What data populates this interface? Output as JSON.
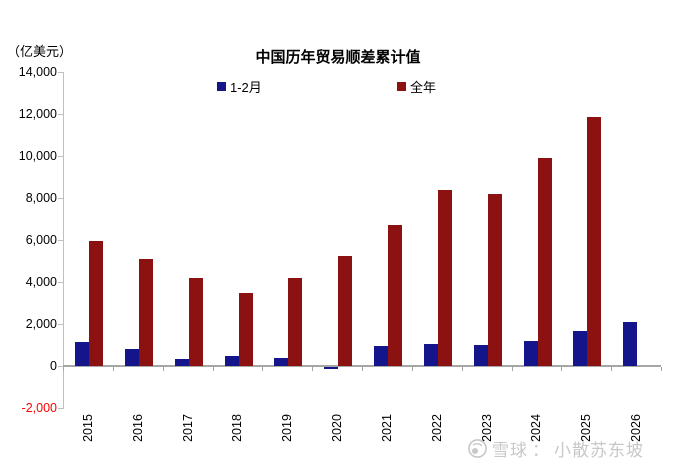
{
  "unit_label": "（亿美元）",
  "watermark": {
    "brand": "雪球",
    "separator": "：",
    "username": "小散苏东坡"
  },
  "colors": {
    "jan_feb_bar": "#14148B",
    "full_year_bar": "#8C1111",
    "axis": "#BFBFBF",
    "zero_line": "#A6A6A6",
    "negative_tick_label": "#FF0000",
    "watermark": "#C8C8C8"
  },
  "chart_data": {
    "type": "bar",
    "title": "中国历年贸易顺差累计值",
    "unit": "亿美元",
    "grid": false,
    "legend_position": "top",
    "ylim": [
      -2000,
      14000
    ],
    "ytick_step": 2000,
    "yticks": [
      {
        "value": 14000,
        "label": "14,000",
        "color": "#000000"
      },
      {
        "value": 12000,
        "label": "12,000",
        "color": "#000000"
      },
      {
        "value": 10000,
        "label": "10,000",
        "color": "#000000"
      },
      {
        "value": 8000,
        "label": "8,000",
        "color": "#000000"
      },
      {
        "value": 6000,
        "label": "6,000",
        "color": "#000000"
      },
      {
        "value": 4000,
        "label": "4,000",
        "color": "#000000"
      },
      {
        "value": 2000,
        "label": "2,000",
        "color": "#000000"
      },
      {
        "value": 0,
        "label": "0",
        "color": "#000000"
      },
      {
        "value": -2000,
        "label": "-2,000",
        "color": "#FF0000"
      }
    ],
    "categories": [
      "2015",
      "2016",
      "2017",
      "2018",
      "2019",
      "2020",
      "2021",
      "2022",
      "2023",
      "2024",
      "2025",
      "2026"
    ],
    "series": [
      {
        "key": "jan-feb",
        "name": "1-2月",
        "color": "#14148B",
        "values": [
          1150,
          800,
          350,
          460,
          400,
          -80,
          950,
          1050,
          1020,
          1200,
          1650,
          2100
        ]
      },
      {
        "key": "full-year",
        "name": "全年",
        "color": "#8C1111",
        "values": [
          5940,
          5100,
          4190,
          3500,
          4210,
          5240,
          6700,
          8380,
          8200,
          9900,
          11850,
          null
        ]
      }
    ]
  }
}
